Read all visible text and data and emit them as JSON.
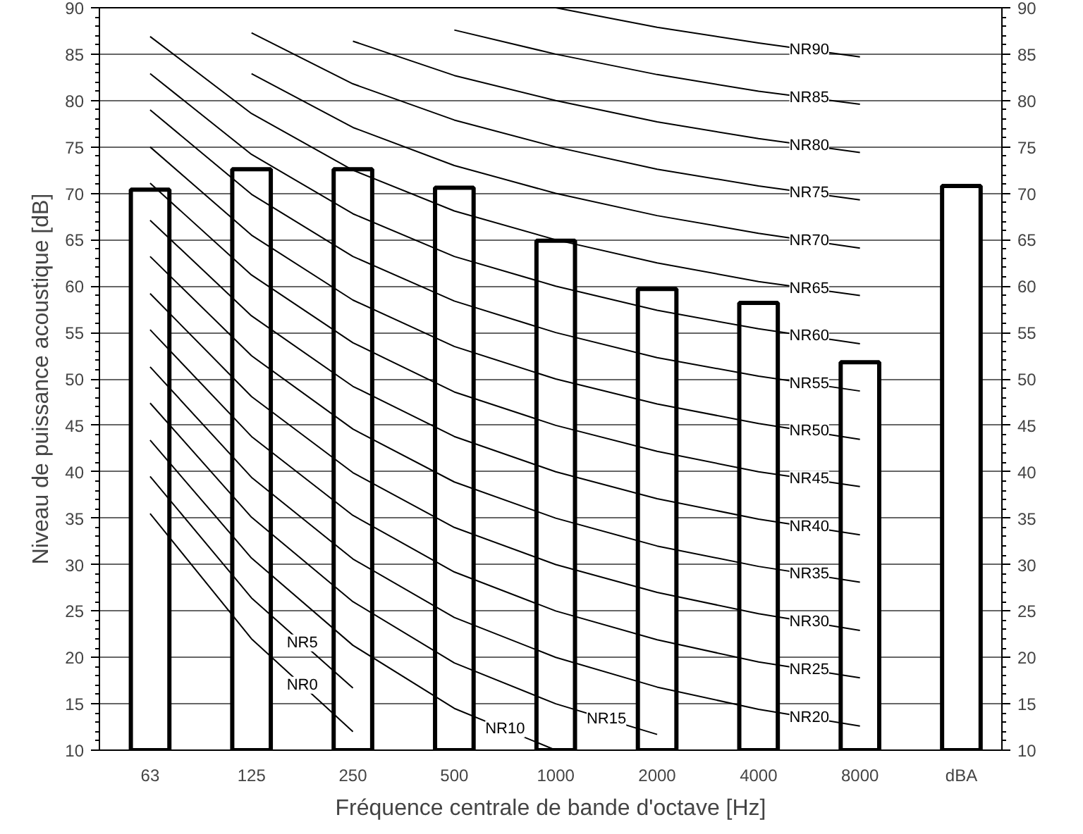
{
  "chart_data": {
    "type": "bar",
    "xlabel": "Fréquence centrale de bande d'octave [Hz]",
    "ylabel": "Niveau de puissance acoustique [dB]",
    "categories": [
      "63",
      "125",
      "250",
      "500",
      "1000",
      "2000",
      "4000",
      "8000",
      "dBA"
    ],
    "ylim": [
      10,
      90
    ],
    "yticks": [
      10,
      15,
      20,
      25,
      30,
      35,
      40,
      45,
      50,
      55,
      60,
      65,
      70,
      75,
      80,
      85,
      90
    ],
    "y2lim": [
      10,
      90
    ],
    "y2ticks": [
      10,
      15,
      20,
      25,
      30,
      35,
      40,
      45,
      50,
      55,
      60,
      65,
      70,
      75,
      80,
      85,
      90
    ],
    "grid": "y",
    "legend": false,
    "series": [
      {
        "color": "#ffffff",
        "values": [
          70.4,
          72.6,
          72.6,
          70.6,
          64.9,
          59.7,
          58.2,
          51.8,
          70.8
        ]
      },
      {
        "type": "line",
        "name": "NR0",
        "color": "#000000",
        "values": [
          35.5,
          22,
          12,
          null,
          null,
          null,
          null,
          null,
          null
        ]
      },
      {
        "type": "line",
        "name": "NR5",
        "color": "#000000",
        "values": [
          39.5,
          26.4,
          16.7,
          null,
          null,
          null,
          null,
          null,
          null
        ]
      },
      {
        "type": "line",
        "name": "NR10",
        "color": "#000000",
        "values": [
          43.4,
          30.7,
          21.3,
          14.5,
          10,
          null,
          null,
          null,
          null
        ]
      },
      {
        "type": "line",
        "name": "NR15",
        "color": "#000000",
        "values": [
          47.4,
          35.1,
          26.0,
          19.4,
          15,
          11.7,
          null,
          null,
          null
        ]
      },
      {
        "type": "line",
        "name": "NR20",
        "color": "#000000",
        "values": [
          51.3,
          39.4,
          30.6,
          24.3,
          20,
          16.8,
          14.4,
          12.6,
          null
        ]
      },
      {
        "type": "line",
        "name": "NR25",
        "color": "#000000",
        "values": [
          55.3,
          43.8,
          35.3,
          29.2,
          25,
          21.9,
          19.5,
          17.8,
          null
        ]
      },
      {
        "type": "line",
        "name": "NR30",
        "color": "#000000",
        "values": [
          59.2,
          48.1,
          39.9,
          34.0,
          30,
          27.0,
          24.7,
          22.9,
          null
        ]
      },
      {
        "type": "line",
        "name": "NR35",
        "color": "#000000",
        "values": [
          63.2,
          52.5,
          44.6,
          38.9,
          35,
          32.0,
          29.8,
          28.1,
          null
        ]
      },
      {
        "type": "line",
        "name": "NR40",
        "color": "#000000",
        "values": [
          67.1,
          56.8,
          49.2,
          43.8,
          40,
          37.1,
          34.9,
          33.2,
          null
        ]
      },
      {
        "type": "line",
        "name": "NR45",
        "color": "#000000",
        "values": [
          71.1,
          61.2,
          53.9,
          48.6,
          45,
          42.2,
          40.0,
          38.4,
          null
        ]
      },
      {
        "type": "line",
        "name": "NR50",
        "color": "#000000",
        "values": [
          75.0,
          65.5,
          58.5,
          53.5,
          50,
          47.3,
          45.2,
          43.5,
          null
        ]
      },
      {
        "type": "line",
        "name": "NR55",
        "color": "#000000",
        "values": [
          79.0,
          69.9,
          63.2,
          58.4,
          55,
          52.3,
          50.3,
          48.7,
          null
        ]
      },
      {
        "type": "line",
        "name": "NR60",
        "color": "#000000",
        "values": [
          82.9,
          74.2,
          67.8,
          63.2,
          60,
          57.4,
          55.4,
          53.8,
          null
        ]
      },
      {
        "type": "line",
        "name": "NR65",
        "color": "#000000",
        "values": [
          86.9,
          78.6,
          72.5,
          68.1,
          65,
          62.5,
          60.5,
          59.0,
          null
        ]
      },
      {
        "type": "line",
        "name": "NR70",
        "color": "#000000",
        "values": [
          null,
          82.9,
          77.1,
          73.0,
          70,
          67.6,
          65.7,
          64.1,
          null
        ]
      },
      {
        "type": "line",
        "name": "NR75",
        "color": "#000000",
        "values": [
          null,
          87.3,
          81.8,
          77.9,
          75,
          72.6,
          70.8,
          69.3,
          null
        ]
      },
      {
        "type": "line",
        "name": "NR80",
        "color": "#000000",
        "values": [
          null,
          null,
          86.4,
          82.7,
          80,
          77.7,
          75.9,
          74.4,
          null
        ]
      },
      {
        "type": "line",
        "name": "NR85",
        "color": "#000000",
        "values": [
          null,
          null,
          null,
          87.6,
          85,
          82.8,
          81.0,
          79.6,
          null
        ]
      },
      {
        "type": "line",
        "name": "NR90",
        "color": "#000000",
        "values": [
          null,
          null,
          null,
          null,
          90,
          87.9,
          86.2,
          84.7,
          null
        ]
      }
    ]
  }
}
